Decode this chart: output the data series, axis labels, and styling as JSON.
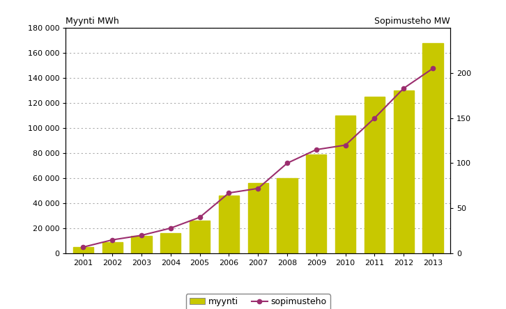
{
  "years": [
    2001,
    2002,
    2003,
    2004,
    2005,
    2006,
    2007,
    2008,
    2009,
    2010,
    2011,
    2012,
    2013
  ],
  "myynti": [
    5000,
    9000,
    14000,
    16000,
    26000,
    46000,
    56000,
    60000,
    79000,
    110000,
    125000,
    130000,
    168000
  ],
  "sopimusteho": [
    7,
    15,
    20,
    28,
    40,
    67,
    72,
    100,
    115,
    120,
    150,
    183,
    205
  ],
  "bar_color": "#c8c800",
  "line_color": "#9b2d6e",
  "title_left": "Myynti MWh",
  "title_right": "Sopimusteho MW",
  "ylim_left": [
    0,
    180000
  ],
  "ylim_right": [
    0,
    250
  ],
  "yticks_left": [
    0,
    20000,
    40000,
    60000,
    80000,
    100000,
    120000,
    140000,
    160000,
    180000
  ],
  "ytick_labels_left": [
    "0",
    "20 000",
    "40 000",
    "60 000",
    "80 000",
    "100 000",
    "120 000",
    "140 000",
    "160 000",
    "180 000"
  ],
  "yticks_right": [
    0,
    50,
    100,
    150,
    200
  ],
  "ytick_labels_right": [
    "0",
    "50",
    "100",
    "150",
    "200"
  ],
  "legend_myynti": "myynti",
  "legend_sopimusteho": "sopimusteho",
  "background_color": "#ffffff",
  "grid_color": "#aaaaaa"
}
